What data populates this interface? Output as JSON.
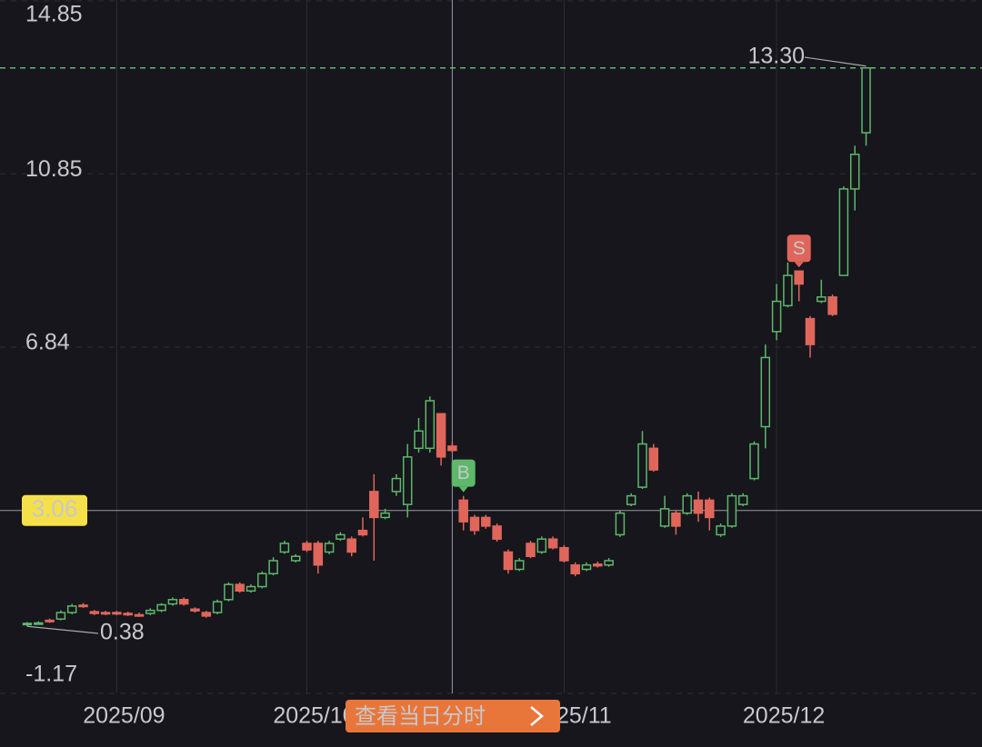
{
  "chart_data": {
    "type": "candlestick",
    "categories": [
      null,
      null,
      null,
      null,
      null,
      null,
      null,
      null,
      "2025/09",
      null,
      null,
      null,
      null,
      null,
      null,
      null,
      null,
      null,
      null,
      null,
      null,
      null,
      null,
      null,
      null,
      "2025/10",
      null,
      null,
      null,
      null,
      null,
      null,
      null,
      null,
      null,
      null,
      null,
      null,
      null,
      null,
      null,
      null,
      null,
      null,
      null,
      null,
      null,
      null,
      "2025/11",
      null,
      null,
      null,
      null,
      null,
      null,
      null,
      null,
      null,
      null,
      null,
      null,
      null,
      null,
      null,
      null,
      null,
      null,
      "2025/12",
      null,
      null,
      null,
      null,
      null,
      null,
      null,
      null
    ],
    "open": [
      0.42,
      0.45,
      0.52,
      0.55,
      0.7,
      0.87,
      0.72,
      0.7,
      0.7,
      0.68,
      0.65,
      0.68,
      0.75,
      0.9,
      1.0,
      0.78,
      0.7,
      0.7,
      1.0,
      1.35,
      1.2,
      1.3,
      1.6,
      2.1,
      1.9,
      2.3,
      2.3,
      2.1,
      2.4,
      2.4,
      2.6,
      3.5,
      2.9,
      3.5,
      3.2,
      4.5,
      4.5,
      5.3,
      4.55,
      3.3,
      2.9,
      2.9,
      2.7,
      2.1,
      1.7,
      2.3,
      2.1,
      2.4,
      2.2,
      1.8,
      1.7,
      1.82,
      1.8,
      2.5,
      3.2,
      3.6,
      4.5,
      2.7,
      3.0,
      3.0,
      3.3,
      3.3,
      2.5,
      2.7,
      3.2,
      3.8,
      5.0,
      7.2,
      7.8,
      8.6,
      7.5,
      7.9,
      8.0,
      8.5,
      10.5,
      11.8
    ],
    "high": [
      0.48,
      0.5,
      0.56,
      0.75,
      0.9,
      0.92,
      0.76,
      0.74,
      0.74,
      0.72,
      0.7,
      0.8,
      0.92,
      1.05,
      1.05,
      0.82,
      0.74,
      1.0,
      1.4,
      1.4,
      1.35,
      1.65,
      1.98,
      2.36,
      2.05,
      2.36,
      2.36,
      2.36,
      2.56,
      2.46,
      2.9,
      3.9,
      3.1,
      3.9,
      4.6,
      5.2,
      5.7,
      5.3,
      4.65,
      3.4,
      2.96,
      2.96,
      2.76,
      2.16,
      1.96,
      2.36,
      2.46,
      2.46,
      2.26,
      1.86,
      1.86,
      1.88,
      1.96,
      3.06,
      3.46,
      4.9,
      4.6,
      3.4,
      3.06,
      3.46,
      3.5,
      3.36,
      2.76,
      3.46,
      3.46,
      4.66,
      6.9,
      8.3,
      8.8,
      8.6,
      7.56,
      8.4,
      8.06,
      10.56,
      11.5,
      13.3
    ],
    "low": [
      0.38,
      0.42,
      0.46,
      0.52,
      0.66,
      0.81,
      0.64,
      0.64,
      0.64,
      0.62,
      0.6,
      0.64,
      0.71,
      0.86,
      0.86,
      0.7,
      0.58,
      0.66,
      0.96,
      1.16,
      1.16,
      1.26,
      1.56,
      2.06,
      1.86,
      2.1,
      1.6,
      2.05,
      2.36,
      2.0,
      2.46,
      1.9,
      2.86,
      3.4,
      2.9,
      4.4,
      4.4,
      4.1,
      4.4,
      2.6,
      2.5,
      2.64,
      2.34,
      1.6,
      1.66,
      1.96,
      2.06,
      2.16,
      1.86,
      1.54,
      1.66,
      1.74,
      1.76,
      2.45,
      3.16,
      3.56,
      3.96,
      2.66,
      2.5,
      2.96,
      2.8,
      2.6,
      2.45,
      2.66,
      3.16,
      3.76,
      4.5,
      7.0,
      7.76,
      7.9,
      6.6,
      7.86,
      7.56,
      8.5,
      10.0,
      11.5
    ],
    "close": [
      0.45,
      0.46,
      0.5,
      0.7,
      0.85,
      0.85,
      0.68,
      0.68,
      0.68,
      0.66,
      0.64,
      0.75,
      0.88,
      1.0,
      0.9,
      0.74,
      0.62,
      0.95,
      1.35,
      1.2,
      1.3,
      1.6,
      1.9,
      2.3,
      2.0,
      2.15,
      1.8,
      2.3,
      2.5,
      2.1,
      2.5,
      2.9,
      3.0,
      3.8,
      4.3,
      4.9,
      5.6,
      4.3,
      4.45,
      2.8,
      2.6,
      2.7,
      2.4,
      1.7,
      1.9,
      2.0,
      2.4,
      2.2,
      1.9,
      1.6,
      1.8,
      1.78,
      1.9,
      3.0,
      3.4,
      4.6,
      4.0,
      3.1,
      2.7,
      3.4,
      3.0,
      2.9,
      2.7,
      3.4,
      3.4,
      4.6,
      6.6,
      7.9,
      8.5,
      8.3,
      6.9,
      8.0,
      7.6,
      10.5,
      11.3,
      13.3
    ],
    "up_color": "#5db86a",
    "down_color": "#e0665c",
    "ylim": [
      -1.17,
      14.85
    ],
    "yticks": [
      14.85,
      10.85,
      6.84,
      -1.17
    ],
    "grid": true,
    "max_label": {
      "index": 75,
      "value": 13.3,
      "label": "13.30"
    },
    "min_label": {
      "index": 0,
      "value": 0.38
    },
    "crosshair": {
      "index": 38,
      "value": 3.06
    },
    "signals": [
      {
        "index": 39,
        "label": "B",
        "color": "#5db86a"
      },
      {
        "index": 69,
        "label": "S",
        "color": "#e0665c"
      }
    ],
    "button": "查看当日分时"
  }
}
